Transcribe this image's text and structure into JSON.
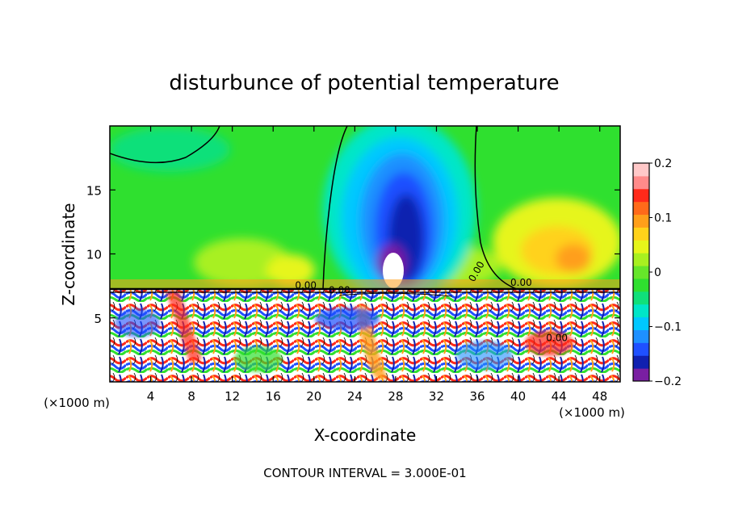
{
  "chart_data": {
    "type": "heatmap",
    "title": "disturbunce of potential temperature",
    "xlabel": "X-coordinate",
    "ylabel": "Z-coordinate",
    "x_unit_label": "(×1000 m)",
    "y_unit_label": "(×1000 m)",
    "xlim": [
      0,
      50
    ],
    "ylim": [
      0,
      20
    ],
    "x_ticks": [
      4,
      8,
      12,
      16,
      20,
      24,
      28,
      32,
      36,
      40,
      44,
      48
    ],
    "y_ticks": [
      5,
      10,
      15
    ],
    "colorbar": {
      "range": [
        -0.2,
        0.2
      ],
      "tick_values": [
        -0.2,
        -0.1,
        0,
        0.1,
        0.2
      ],
      "tick_labels": [
        "−0.2",
        "−0.1",
        "0",
        "0.1",
        "0.2"
      ],
      "colors": [
        "#7a1fa2",
        "#1020b0",
        "#1f50ff",
        "#1e90ff",
        "#00c8ff",
        "#00e6c8",
        "#10e07a",
        "#2fe02f",
        "#66e62a",
        "#a8f020",
        "#e6f51a",
        "#ffd21a",
        "#ff9f1a",
        "#ff6a1a",
        "#ff2a1a",
        "#ff8a8a",
        "#ffc8c8"
      ]
    },
    "contour_interval_text": "CONTOUR INTERVAL = 3.000E-01",
    "contour_labels": [
      "0.00",
      "0.00",
      "0.00",
      "0.00",
      "0.00"
    ]
  },
  "colors": {
    "background": "#ffffff",
    "upper_layer": "#2fe02f",
    "cold_anomaly": "#1020b0",
    "warm_anomaly": "#ff9f1a"
  }
}
